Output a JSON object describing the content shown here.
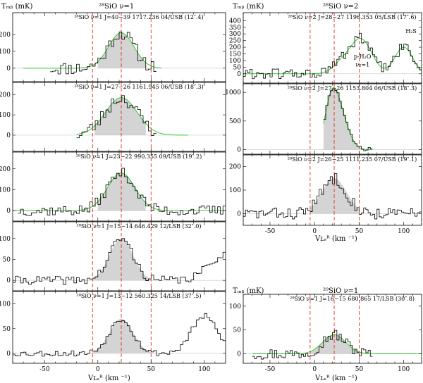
{
  "figure": {
    "left_column_title": "²⁸SiO ν=1",
    "right_column_title": "²⁸SiO ν=2",
    "right_lower_title": "²⁹SiO ν=1",
    "tmb_label": "Tₘᵦ (mK)",
    "xaxis_label": "Vʟₛᴿ (km ⁻¹)",
    "x_ticks": [
      -50,
      0,
      50,
      100
    ],
    "colors": {
      "spectrum": "#000000",
      "fit": "#33cc33",
      "fill": "#d4d4d4",
      "guide": "#e03020"
    }
  },
  "chart_data": [
    {
      "type": "line",
      "panel": "L1",
      "label": "²⁸SiO ν=1 J=40−39 1717.236 04/USB (12″.4)",
      "xlim": [
        -80,
        120
      ],
      "ylim": [
        -80,
        330
      ],
      "y_ticks": [
        0,
        100,
        200
      ],
      "data_range": [
        -45,
        55
      ],
      "peaks": [
        {
          "center": 22,
          "width": 12,
          "amplitude": 210
        }
      ],
      "fit_range": [
        -70,
        60
      ],
      "shaded": [
        0,
        45
      ],
      "noise": 40,
      "seed": 11
    },
    {
      "type": "line",
      "panel": "L2",
      "label": "²⁸SiO ν=1 J=27−26 1161.945 06/USB (18″.3)",
      "xlim": [
        -80,
        120
      ],
      "ylim": [
        -80,
        260
      ],
      "y_ticks": [
        0,
        100,
        200
      ],
      "data_range": [
        -20,
        55
      ],
      "peaks": [
        {
          "center": 22,
          "width": 15,
          "amplitude": 185
        }
      ],
      "fit_range": [
        -20,
        85
      ],
      "shaded": [
        -3,
        45
      ],
      "noise": 35,
      "seed": 23
    },
    {
      "type": "line",
      "panel": "L3",
      "label": "²⁸SiO ν=1 J=23−22 990.355 09/USB (19″.2)",
      "xlim": [
        -80,
        120
      ],
      "ylim": [
        -50,
        280
      ],
      "y_ticks": [
        0,
        100,
        200
      ],
      "data_range": [
        -75,
        118
      ],
      "peaks": [
        {
          "center": 22,
          "width": 13,
          "amplitude": 180
        }
      ],
      "fit_range": [
        -80,
        120
      ],
      "shaded": [
        0,
        45
      ],
      "noise": 25,
      "seed": 37
    },
    {
      "type": "line",
      "panel": "L4",
      "label": "²⁸SiO ν=1 J=15−14 646.429 12/LSB (32″.0)",
      "xlim": [
        -80,
        120
      ],
      "ylim": [
        -25,
        140
      ],
      "y_ticks": [
        0,
        50,
        100
      ],
      "data_range": [
        -80,
        120
      ],
      "peaks": [
        {
          "center": 22,
          "width": 11,
          "amplitude": 100
        },
        {
          "center": 118,
          "width": 14,
          "amplitude": 60
        }
      ],
      "fit_range": null,
      "shaded": [
        -5,
        50
      ],
      "noise": 10,
      "seed": 41
    },
    {
      "type": "line",
      "panel": "L5",
      "label": "²⁸SiO ν=1 J=13−12 560.325 14/LSB (37″.5)",
      "xlim": [
        -80,
        120
      ],
      "ylim": [
        -20,
        125
      ],
      "y_ticks": [
        0,
        50,
        100
      ],
      "data_range": [
        -80,
        120
      ],
      "peaks": [
        {
          "center": 22,
          "width": 11,
          "amplitude": 70
        },
        {
          "center": 100,
          "width": 12,
          "amplitude": 75
        }
      ],
      "fit_range": null,
      "shaded": [
        -5,
        50
      ],
      "noise": 6,
      "seed": 53
    },
    {
      "type": "line",
      "panel": "R1",
      "label": "²⁸SiO ν=2 J=28−27 1196.353 05/LSB (17″.6)",
      "xlim": [
        -80,
        120
      ],
      "ylim": [
        -70,
        460
      ],
      "y_ticks": [
        0,
        50,
        100,
        150,
        200,
        250,
        300,
        350,
        400
      ],
      "data_range": [
        -80,
        120
      ],
      "peaks": [
        {
          "center": 52,
          "width": 12,
          "amplitude": 260
        },
        {
          "center": 30,
          "width": 10,
          "amplitude": 70
        },
        {
          "center": 100,
          "width": 10,
          "amplitude": 200
        }
      ],
      "fit_range": [
        -80,
        120
      ],
      "shaded": null,
      "noise": 40,
      "seed": 61,
      "annotations": [
        "H₂S",
        "p-H₂O",
        "ν₂=1"
      ]
    },
    {
      "type": "line",
      "panel": "R2",
      "label": "²⁸SiO ν=2 J=27−26 1153.804 06/USB (18″.3)",
      "xlim": [
        -80,
        120
      ],
      "ylim": [
        -80,
        1150
      ],
      "y_ticks": [
        0,
        500,
        1000
      ],
      "data_range": [
        10,
        65
      ],
      "peaks": [
        {
          "center": 20,
          "width": 8,
          "amplitude": 980
        },
        {
          "center": 33,
          "width": 8,
          "amplitude": 350
        }
      ],
      "fit_range": [
        10,
        65
      ],
      "shaded": [
        10,
        50
      ],
      "noise": 40,
      "seed": 73
    },
    {
      "type": "line",
      "panel": "R3",
      "label": "²⁸SiO ν=2 J=26−25 1111.235 07/USB (19″.1)",
      "xlim": [
        -80,
        120
      ],
      "ylim": [
        -50,
        250
      ],
      "y_ticks": [
        0,
        100,
        200
      ],
      "data_range": [
        -80,
        120
      ],
      "peaks": [
        {
          "center": 22,
          "width": 14,
          "amplitude": 150
        }
      ],
      "fit_range": null,
      "shaded": [
        -5,
        50
      ],
      "noise": 25,
      "seed": 83
    },
    {
      "type": "line",
      "panel": "R4",
      "label": "²⁹SiO ν=1 J=16−15 680.865 17/LSB (30″.8)",
      "xlim": [
        -80,
        120
      ],
      "ylim": [
        -20,
        125
      ],
      "y_ticks": [
        0,
        50,
        100
      ],
      "data_range": [
        -70,
        65
      ],
      "peaks": [
        {
          "center": 22,
          "width": 13,
          "amplitude": 40
        }
      ],
      "fit_range": [
        -70,
        120
      ],
      "shaded": [
        -5,
        50
      ],
      "noise": 12,
      "seed": 97
    }
  ]
}
